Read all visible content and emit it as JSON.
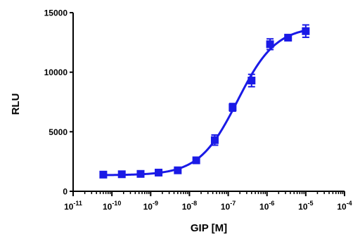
{
  "chart_data": {
    "type": "scatter",
    "title": "",
    "xlabel": "GIP [M]",
    "ylabel": "RLU",
    "xscale": "log",
    "xlim": [
      1e-11,
      0.0001
    ],
    "ylim": [
      0,
      15000
    ],
    "x_tick_labels": [
      {
        "base": "10",
        "exp": "-11"
      },
      {
        "base": "10",
        "exp": "-10"
      },
      {
        "base": "10",
        "exp": "-9"
      },
      {
        "base": "10",
        "exp": "-8"
      },
      {
        "base": "10",
        "exp": "-7"
      },
      {
        "base": "10",
        "exp": "-6"
      },
      {
        "base": "10",
        "exp": "-5"
      },
      {
        "base": "10",
        "exp": "-4"
      }
    ],
    "y_ticks": [
      0,
      5000,
      10000,
      15000
    ],
    "y_tick_labels": [
      "0",
      "5000",
      "10000",
      "15000"
    ],
    "grid": false,
    "legend": false,
    "series": [
      {
        "color": "#1a1ae6",
        "marker": "square",
        "fit": "sigmoidal dose-response",
        "x": [
          6e-11,
          1.8e-10,
          5.5e-10,
          1.6e-09,
          5e-09,
          1.5e-08,
          4.5e-08,
          1.3e-07,
          4e-07,
          1.2e-06,
          3.5e-06,
          1e-05
        ],
        "y": [
          1400,
          1430,
          1460,
          1570,
          1760,
          2600,
          4300,
          7050,
          9300,
          12350,
          12900,
          13450
        ],
        "error": [
          110,
          110,
          100,
          130,
          160,
          180,
          430,
          320,
          520,
          450,
          220,
          520
        ]
      }
    ]
  }
}
